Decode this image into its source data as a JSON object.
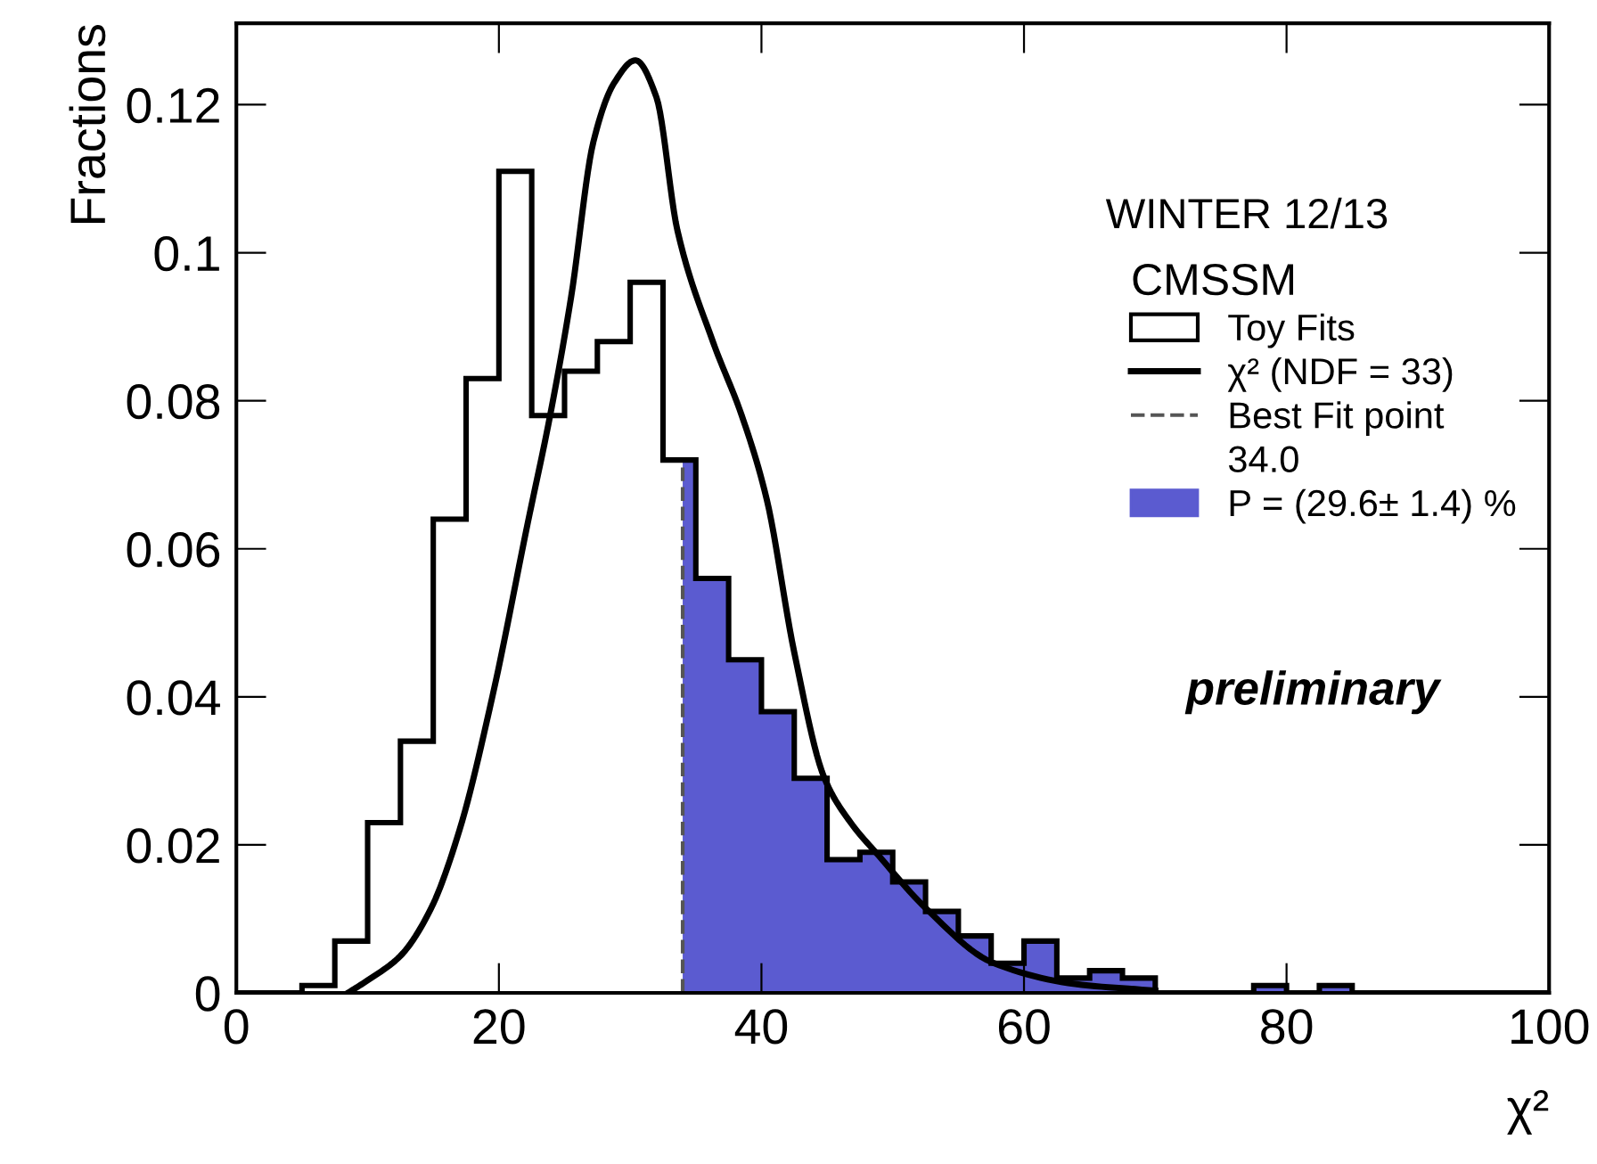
{
  "chart_data": {
    "type": "histogram",
    "xlabel": "χ²",
    "ylabel": "Fractions",
    "legend_title": "CMSSM",
    "xlim": [
      0,
      100
    ],
    "ylim": [
      0,
      0.131
    ],
    "xticks": [
      0,
      20,
      40,
      60,
      80,
      100
    ],
    "yticks": [
      0,
      0.02,
      0.04,
      0.06,
      0.08,
      0.1,
      0.12
    ],
    "grid": false,
    "legend": "top right",
    "series": [
      {
        "name": "Toy Fits",
        "color": "#000000",
        "bins": [
          0,
          2.5,
          5,
          7.5,
          10,
          12.5,
          15,
          17.5,
          20,
          22.5,
          25,
          27.5,
          30,
          32.5,
          35,
          37.5,
          40,
          42.5,
          45,
          47.5,
          50,
          52.5,
          55,
          57.5,
          60,
          62.5,
          65,
          67.5,
          70,
          72.5,
          75,
          77.5,
          80,
          82.5,
          85,
          87.5,
          90,
          92.5,
          95,
          97.5,
          100
        ],
        "values": [
          0,
          0,
          0.001,
          0.007,
          0.023,
          0.034,
          0.064,
          0.083,
          0.111,
          0.078,
          0.084,
          0.088,
          0.096,
          0.072,
          0.056,
          0.045,
          0.038,
          0.029,
          0.018,
          0.019,
          0.015,
          0.011,
          0.0077,
          0.004,
          0.007,
          0.002,
          0.003,
          0.002,
          0,
          0,
          0,
          0.001,
          0,
          0.001,
          0,
          0,
          0,
          0,
          0,
          0
        ]
      },
      {
        "name": "P = (29.6± 1.4) %",
        "color": "#5b5bd0",
        "bins": [
          34,
          35,
          37.5,
          40,
          42.5,
          45,
          47.5,
          50,
          52.5,
          55,
          57.5,
          60,
          62.5,
          65,
          67.5,
          70,
          72.5,
          75,
          77.5,
          80,
          82.5,
          85
        ],
        "values": [
          0.072,
          0.056,
          0.045,
          0.038,
          0.029,
          0.018,
          0.019,
          0.015,
          0.011,
          0.0077,
          0.004,
          0.007,
          0.002,
          0.003,
          0.002,
          0,
          0,
          0,
          0.001,
          0,
          0.001
        ]
      },
      {
        "name": "χ² (NDF = 33)",
        "type": "line",
        "color": "#000000",
        "x": [
          8.5,
          10,
          12.5,
          14.8,
          17,
          19.5,
          22.2,
          23.9,
          25.5,
          27.2,
          28.8,
          30.4,
          32,
          33.6,
          36.3,
          38.5,
          40.4,
          42.5,
          44.8,
          46.8,
          48.9,
          52.6,
          57.6,
          63.9,
          70
        ],
        "values": [
          0,
          0.0017,
          0.005,
          0.0113,
          0.022,
          0.04,
          0.0635,
          0.078,
          0.094,
          0.115,
          0.123,
          0.126,
          0.121,
          0.103,
          0.088,
          0.078,
          0.0667,
          0.046,
          0.029,
          0.023,
          0.0186,
          0.0113,
          0.0041,
          0.0012,
          0.0003
        ]
      }
    ],
    "ref_lines": [
      {
        "axis": "x",
        "value": 34,
        "label": "Best Fit point",
        "color": "#555555",
        "line_style": "dashed"
      }
    ],
    "annotations": [
      "WINTER 12/13",
      "34.0",
      "preliminary"
    ]
  }
}
